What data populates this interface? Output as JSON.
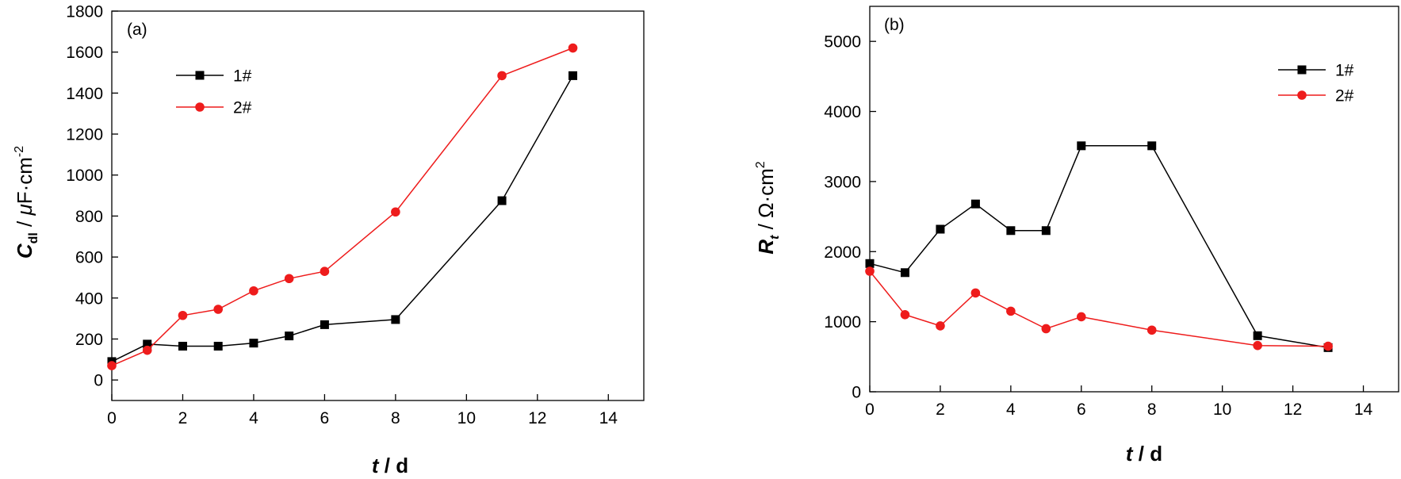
{
  "chart_data": [
    {
      "type": "line",
      "panel_label": "(a)",
      "xlabel": {
        "main": "t",
        "rest": " / d"
      },
      "ylabel": {
        "main": "C",
        "sub": "dl",
        "mid": " / ",
        "unit_greek": "μ",
        "unit_rest": "F·cm",
        "sup": "-2"
      },
      "xlim": [
        0,
        15
      ],
      "ylim": [
        -100,
        1800
      ],
      "xticks": [
        0,
        2,
        4,
        6,
        8,
        10,
        12,
        14
      ],
      "yticks": [
        0,
        200,
        400,
        600,
        800,
        1000,
        1200,
        1400,
        1600,
        1800
      ],
      "x": [
        0,
        1,
        2,
        3,
        4,
        5,
        6,
        8,
        11,
        13
      ],
      "series": [
        {
          "name": "1#",
          "marker": "square",
          "color": "#000000",
          "values": [
            90,
            175,
            165,
            165,
            180,
            215,
            270,
            295,
            875,
            1485
          ]
        },
        {
          "name": "2#",
          "marker": "circle",
          "color": "#ee1c1c",
          "values": [
            70,
            145,
            315,
            345,
            435,
            495,
            530,
            820,
            1485,
            1620
          ]
        }
      ],
      "legend": "upper-left",
      "grid": false
    },
    {
      "type": "line",
      "panel_label": "(b)",
      "xlabel": {
        "main": "t",
        "rest": " / d"
      },
      "ylabel": {
        "main": "R",
        "sub": "t",
        "mid": " / ",
        "unit_rest": "Ω·cm",
        "sup": "2"
      },
      "xlim": [
        0,
        15
      ],
      "ylim": [
        0,
        5500
      ],
      "xticks": [
        0,
        2,
        4,
        6,
        8,
        10,
        12,
        14
      ],
      "yticks": [
        0,
        1000,
        2000,
        3000,
        4000,
        5000
      ],
      "x": [
        0,
        1,
        2,
        3,
        4,
        5,
        6,
        8,
        11,
        13
      ],
      "series": [
        {
          "name": "1#",
          "marker": "square",
          "color": "#000000",
          "values": [
            1830,
            1700,
            2320,
            2680,
            2300,
            2300,
            3510,
            3510,
            800,
            630
          ]
        },
        {
          "name": "2#",
          "marker": "circle",
          "color": "#ee1c1c",
          "values": [
            1720,
            1100,
            940,
            1410,
            1150,
            900,
            1070,
            880,
            660,
            650
          ]
        }
      ],
      "legend": "upper-right",
      "grid": false
    }
  ]
}
